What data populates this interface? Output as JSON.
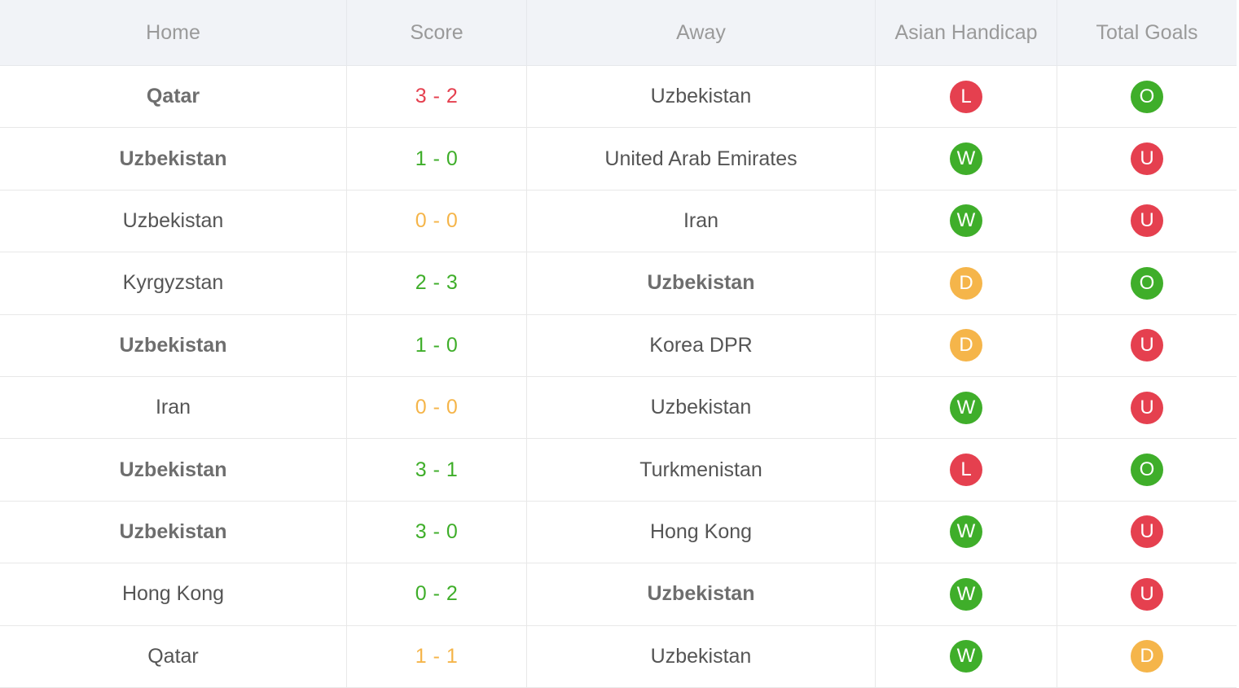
{
  "colors": {
    "win": "#3fae2a",
    "loss": "#e5404f",
    "draw": "#f5b54a"
  },
  "headers": {
    "home": "Home",
    "score": "Score",
    "away": "Away",
    "handicap": "Asian Handicap",
    "total": "Total Goals"
  },
  "rows": [
    {
      "home": "Qatar",
      "home_bold": true,
      "score": "3 - 2",
      "score_color": "#e5404f",
      "away": "Uzbekistan",
      "away_bold": false,
      "ah": "L",
      "ah_color": "#e5404f",
      "tg": "O",
      "tg_color": "#3fae2a"
    },
    {
      "home": "Uzbekistan",
      "home_bold": true,
      "score": "1 - 0",
      "score_color": "#3fae2a",
      "away": "United Arab Emirates",
      "away_bold": false,
      "ah": "W",
      "ah_color": "#3fae2a",
      "tg": "U",
      "tg_color": "#e5404f"
    },
    {
      "home": "Uzbekistan",
      "home_bold": false,
      "score": "0 - 0",
      "score_color": "#f5b54a",
      "away": "Iran",
      "away_bold": false,
      "ah": "W",
      "ah_color": "#3fae2a",
      "tg": "U",
      "tg_color": "#e5404f"
    },
    {
      "home": "Kyrgyzstan",
      "home_bold": false,
      "score": "2 - 3",
      "score_color": "#3fae2a",
      "away": "Uzbekistan",
      "away_bold": true,
      "ah": "D",
      "ah_color": "#f5b54a",
      "tg": "O",
      "tg_color": "#3fae2a"
    },
    {
      "home": "Uzbekistan",
      "home_bold": true,
      "score": "1 - 0",
      "score_color": "#3fae2a",
      "away": "Korea DPR",
      "away_bold": false,
      "ah": "D",
      "ah_color": "#f5b54a",
      "tg": "U",
      "tg_color": "#e5404f"
    },
    {
      "home": "Iran",
      "home_bold": false,
      "score": "0 - 0",
      "score_color": "#f5b54a",
      "away": "Uzbekistan",
      "away_bold": false,
      "ah": "W",
      "ah_color": "#3fae2a",
      "tg": "U",
      "tg_color": "#e5404f"
    },
    {
      "home": "Uzbekistan",
      "home_bold": true,
      "score": "3 - 1",
      "score_color": "#3fae2a",
      "away": "Turkmenistan",
      "away_bold": false,
      "ah": "L",
      "ah_color": "#e5404f",
      "tg": "O",
      "tg_color": "#3fae2a"
    },
    {
      "home": "Uzbekistan",
      "home_bold": true,
      "score": "3 - 0",
      "score_color": "#3fae2a",
      "away": "Hong Kong",
      "away_bold": false,
      "ah": "W",
      "ah_color": "#3fae2a",
      "tg": "U",
      "tg_color": "#e5404f"
    },
    {
      "home": "Hong Kong",
      "home_bold": false,
      "score": "0 - 2",
      "score_color": "#3fae2a",
      "away": "Uzbekistan",
      "away_bold": true,
      "ah": "W",
      "ah_color": "#3fae2a",
      "tg": "U",
      "tg_color": "#e5404f"
    },
    {
      "home": "Qatar",
      "home_bold": false,
      "score": "1 - 1",
      "score_color": "#f5b54a",
      "away": "Uzbekistan",
      "away_bold": false,
      "ah": "W",
      "ah_color": "#3fae2a",
      "tg": "D",
      "tg_color": "#f5b54a"
    }
  ]
}
